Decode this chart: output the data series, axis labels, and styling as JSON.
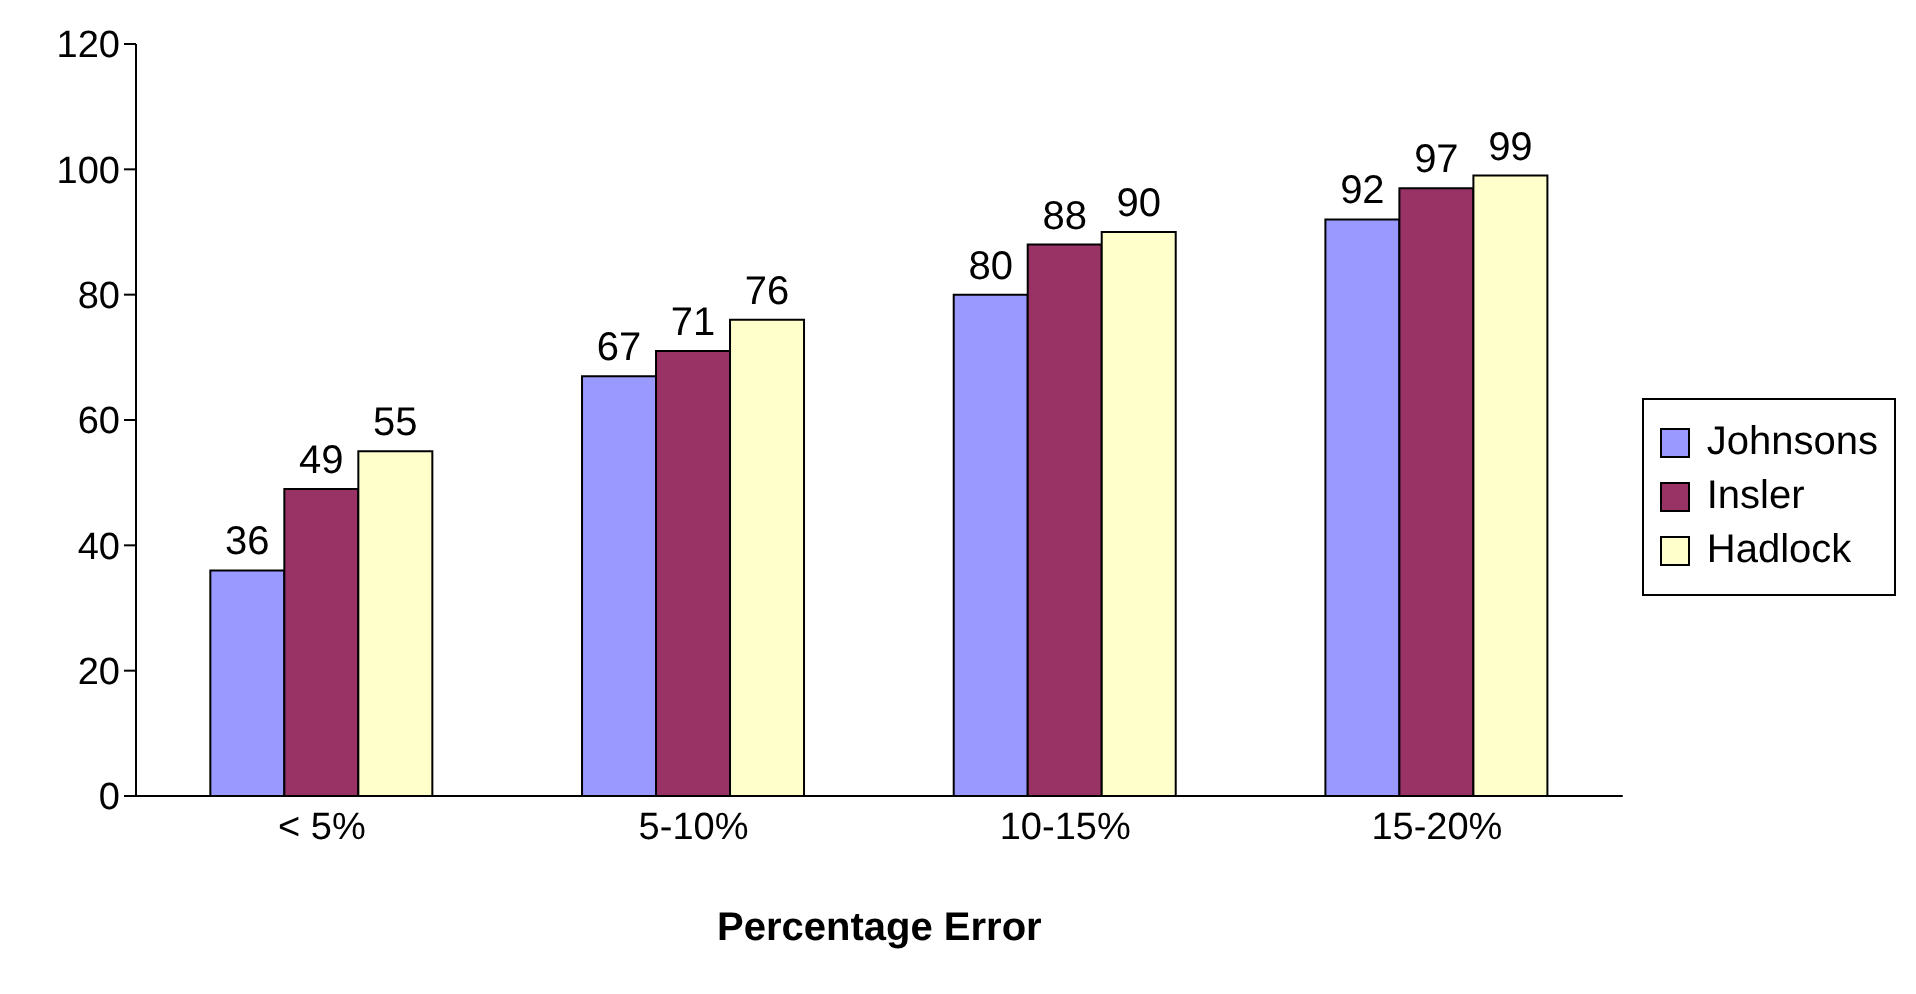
{
  "chart_data": {
    "type": "bar",
    "xlabel": "Percentage Error",
    "categories": [
      "< 5%",
      "5-10%",
      "10-15%",
      "15-20%"
    ],
    "series": [
      {
        "name": "Johnsons",
        "color": "#9999ff",
        "values": [
          36,
          67,
          80,
          92
        ]
      },
      {
        "name": "Insler",
        "color": "#993366",
        "values": [
          49,
          71,
          88,
          97
        ]
      },
      {
        "name": "Hadlock",
        "color": "#ffffcc",
        "values": [
          55,
          76,
          90,
          99
        ]
      }
    ],
    "ylim": [
      0,
      120
    ],
    "yticks": [
      0,
      20,
      40,
      60,
      80,
      100,
      120
    ],
    "data_labels": true,
    "legend": "right",
    "grid": false
  }
}
